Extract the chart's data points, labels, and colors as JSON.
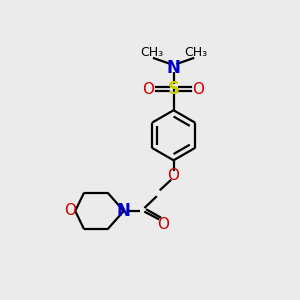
{
  "bg_color": "#ebebeb",
  "bond_color": "#000000",
  "nitrogen_color": "#0000cc",
  "oxygen_color": "#cc0000",
  "sulfur_color": "#cccc00",
  "line_width": 1.6,
  "figsize": [
    3.0,
    3.0
  ],
  "dpi": 100,
  "xlim": [
    0,
    10
  ],
  "ylim": [
    0,
    10
  ]
}
